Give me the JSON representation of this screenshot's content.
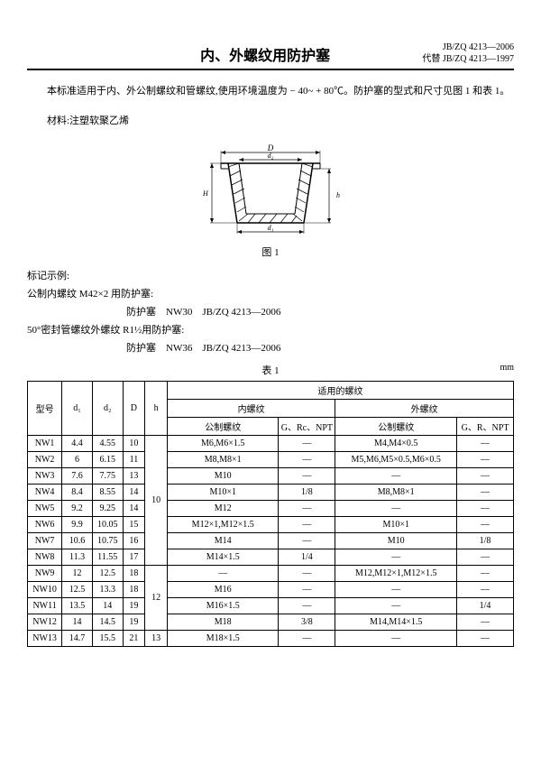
{
  "header": {
    "std_no": "JB/ZQ 4213—2006",
    "replaces": "代替 JB/ZQ 4213—1997",
    "title": "内、外螺纹用防护塞"
  },
  "intro": {
    "p1": "本标准适用于内、外公制螺纹和管螺纹,使用环境温度为 − 40~ + 80℃。防护塞的型式和尺寸见图 1 和表 1。",
    "p2": "材料:注塑软聚乙烯"
  },
  "figure": {
    "dims": {
      "D": "D",
      "d2": "d₂",
      "d1": "d₁",
      "h": "h",
      "H": "H"
    },
    "caption": "图 1"
  },
  "marking": {
    "l1": "标记示例:",
    "l2": "公制内螺纹 M42×2 用防护塞:",
    "l3": "防护塞　NW30　JB/ZQ 4213—2006",
    "l4": "50°密封管螺纹外螺纹 R1½用防护塞:",
    "l5": "防护塞　NW36　JB/ZQ 4213—2006"
  },
  "table": {
    "caption": "表 1",
    "unit": "mm",
    "head": {
      "model": "型号",
      "d1": "d₁",
      "d2": "d₂",
      "D": "D",
      "h": "h",
      "applicable": "适用的螺纹",
      "inner": "内螺纹",
      "outer": "外螺纹",
      "metric": "公制螺纹",
      "pipe": "G、Rc、NPT",
      "pipe2": "G、R、NPT"
    },
    "rows": [
      {
        "m": "NW1",
        "d1": "4.4",
        "d2": "4.55",
        "D": "10",
        "h": "",
        "t1": "M6,M6×1.5",
        "t2": "—",
        "t3": "M4,M4×0.5",
        "t4": "—"
      },
      {
        "m": "NW2",
        "d1": "6",
        "d2": "6.15",
        "D": "11",
        "h": "",
        "t1": "M8,M8×1",
        "t2": "—",
        "t3": "M5,M6,M5×0.5,M6×0.5",
        "t4": "—"
      },
      {
        "m": "NW3",
        "d1": "7.6",
        "d2": "7.75",
        "D": "13",
        "h": "",
        "t1": "M10",
        "t2": "—",
        "t3": "—",
        "t4": "—"
      },
      {
        "m": "NW4",
        "d1": "8.4",
        "d2": "8.55",
        "D": "14",
        "h": "",
        "t1": "M10×1",
        "t2": "1/8",
        "t3": "M8,M8×1",
        "t4": "—"
      },
      {
        "m": "NW5",
        "d1": "9.2",
        "d2": "9.25",
        "D": "14",
        "h": "10",
        "t1": "M12",
        "t2": "—",
        "t3": "—",
        "t4": "—"
      },
      {
        "m": "NW6",
        "d1": "9.9",
        "d2": "10.05",
        "D": "15",
        "h": "",
        "t1": "M12×1,M12×1.5",
        "t2": "—",
        "t3": "M10×1",
        "t4": "—"
      },
      {
        "m": "NW7",
        "d1": "10.6",
        "d2": "10.75",
        "D": "16",
        "h": "",
        "t1": "M14",
        "t2": "—",
        "t3": "M10",
        "t4": "1/8"
      },
      {
        "m": "NW8",
        "d1": "11.3",
        "d2": "11.55",
        "D": "17",
        "h": "",
        "t1": "M14×1.5",
        "t2": "1/4",
        "t3": "—",
        "t4": "—"
      },
      {
        "m": "NW9",
        "d1": "12",
        "d2": "12.5",
        "D": "18",
        "h": "",
        "t1": "—",
        "t2": "—",
        "t3": "M12,M12×1,M12×1.5",
        "t4": "—"
      },
      {
        "m": "NW10",
        "d1": "12.5",
        "d2": "13.3",
        "D": "18",
        "h": "",
        "t1": "M16",
        "t2": "—",
        "t3": "—",
        "t4": "—"
      },
      {
        "m": "NW11",
        "d1": "13.5",
        "d2": "14",
        "D": "19",
        "h": "12",
        "t1": "M16×1.5",
        "t2": "—",
        "t3": "—",
        "t4": "1/4"
      },
      {
        "m": "NW12",
        "d1": "14",
        "d2": "14.5",
        "D": "19",
        "h": "",
        "t1": "M18",
        "t2": "3/8",
        "t3": "M14,M14×1.5",
        "t4": "—"
      },
      {
        "m": "NW13",
        "d1": "14.7",
        "d2": "15.5",
        "D": "21",
        "h": "13",
        "t1": "M18×1.5",
        "t2": "—",
        "t3": "—",
        "t4": "—"
      }
    ]
  }
}
